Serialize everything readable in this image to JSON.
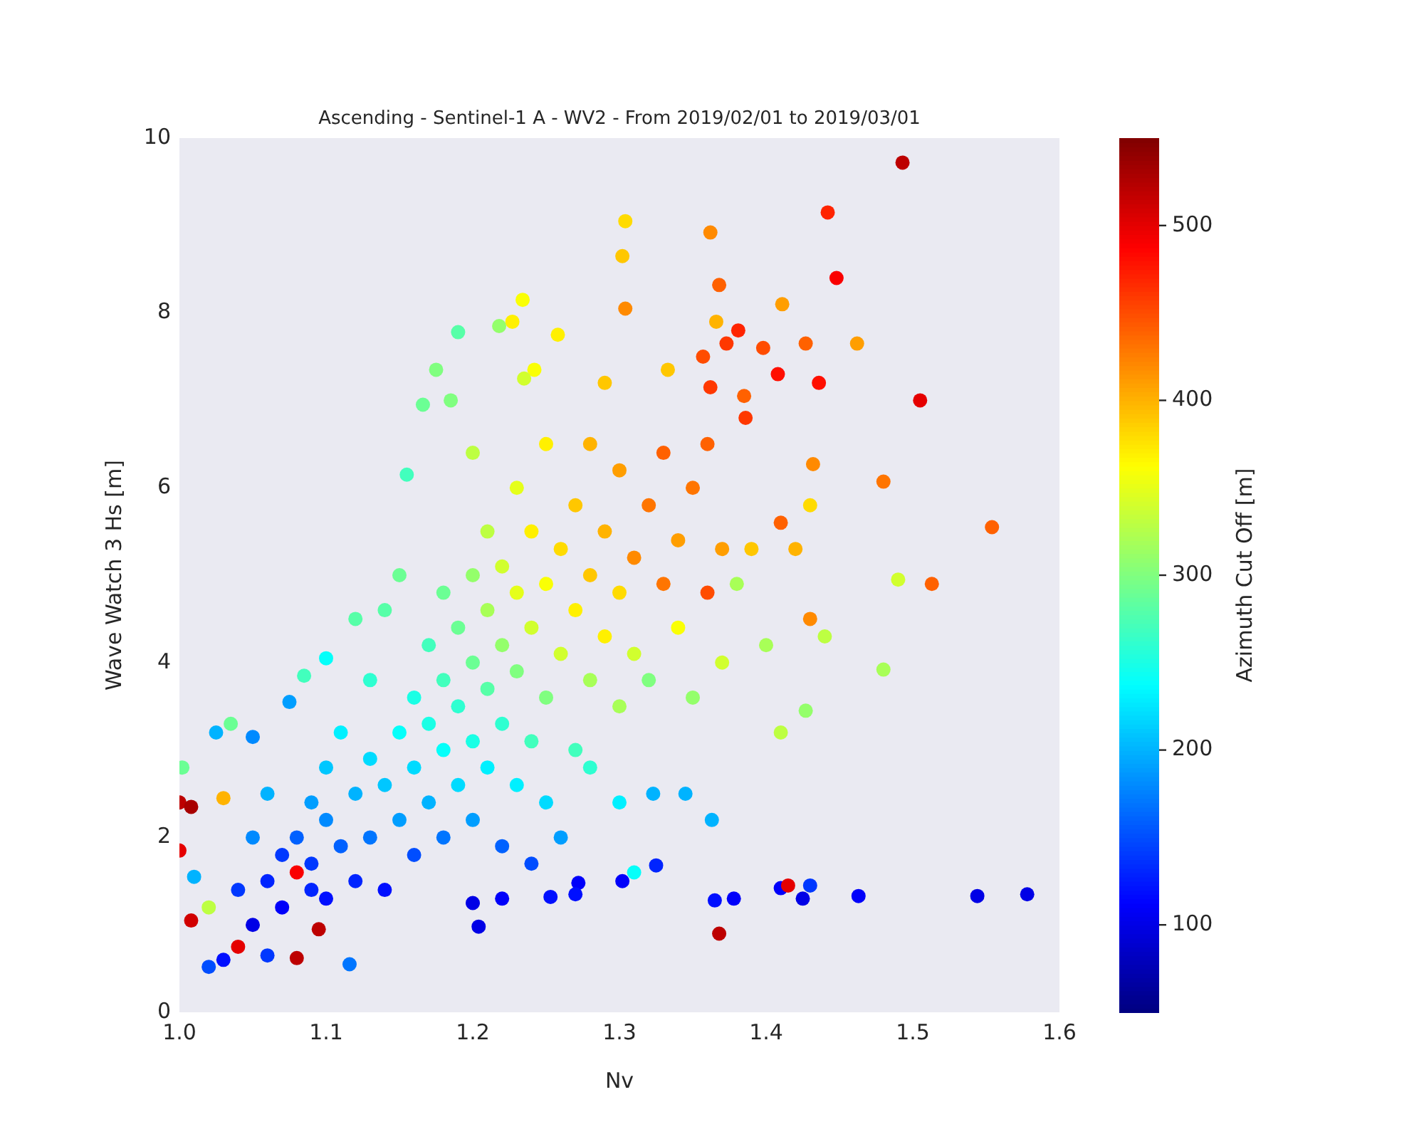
{
  "chart_data": {
    "type": "scatter",
    "title": "Ascending - Sentinel-1 A - WV2 - From 2019/02/01 to 2019/03/01",
    "xlabel": "Nv",
    "ylabel": "Wave Watch 3 Hs [m]",
    "clabel": "Azimuth Cut Off [m]",
    "xlim": [
      1.0,
      1.6
    ],
    "xticks": [
      {
        "value": 1.0,
        "label": "1.0"
      },
      1.1,
      1.2,
      1.3,
      1.4,
      1.5,
      1.6
    ],
    "ylim": [
      0,
      10
    ],
    "yticks": [
      0,
      2,
      4,
      6,
      8,
      10
    ],
    "clim": [
      50,
      550
    ],
    "cticks": [
      100,
      200,
      300,
      400,
      500
    ],
    "grid": false,
    "legend": false,
    "marker": "circle",
    "series": [
      {
        "x": [
          1.493,
          1.442,
          1.448,
          1.362,
          1.368,
          1.304,
          1.302,
          1.304,
          1.234,
          1.227,
          1.411,
          1.462,
          1.427,
          1.398,
          1.373,
          1.381,
          1.357,
          1.362,
          1.436,
          1.505,
          1.408,
          1.554,
          1.513,
          1.49,
          1.48,
          1.432,
          1.48,
          1.427,
          1.41,
          1.385,
          1.386,
          1.366,
          1.333,
          1.29,
          1.258,
          1.242,
          1.235,
          1.218,
          1.19,
          1.175,
          1.166,
          1.155,
          1.185,
          1.2,
          1.365,
          1.378,
          1.41,
          1.415,
          1.425,
          1.43,
          1.463,
          1.544,
          1.578,
          1.368,
          1.325,
          1.323,
          1.345,
          1.363,
          1.31,
          1.302,
          1.272,
          1.27,
          1.253,
          1.22,
          1.2,
          1.204,
          1.116,
          1.02,
          1.03,
          1.04,
          1.06,
          1.08,
          1.05,
          1.07,
          1.09,
          1.0,
          1.0,
          1.008,
          1.002,
          1.008,
          1.01,
          1.02,
          1.025,
          1.035,
          1.05,
          1.075,
          1.085,
          1.1,
          1.08,
          1.095,
          1.03,
          1.05,
          1.06,
          1.04,
          1.06,
          1.07,
          1.08,
          1.09,
          1.1,
          1.1,
          1.11,
          1.12,
          1.12,
          1.13,
          1.13,
          1.14,
          1.14,
          1.15,
          1.15,
          1.16,
          1.16,
          1.16,
          1.17,
          1.17,
          1.17,
          1.18,
          1.18,
          1.18,
          1.18,
          1.19,
          1.19,
          1.19,
          1.2,
          1.2,
          1.2,
          1.2,
          1.21,
          1.21,
          1.21,
          1.21,
          1.22,
          1.22,
          1.22,
          1.22,
          1.23,
          1.23,
          1.23,
          1.23,
          1.24,
          1.24,
          1.24,
          1.25,
          1.25,
          1.25,
          1.25,
          1.26,
          1.26,
          1.27,
          1.27,
          1.27,
          1.28,
          1.28,
          1.28,
          1.29,
          1.29,
          1.3,
          1.3,
          1.3,
          1.31,
          1.31,
          1.32,
          1.32,
          1.33,
          1.33,
          1.34,
          1.34,
          1.35,
          1.35,
          1.36,
          1.36,
          1.37,
          1.37,
          1.38,
          1.39,
          1.4,
          1.41,
          1.42,
          1.43,
          1.44,
          1.43,
          1.3,
          1.28,
          1.26,
          1.24,
          1.14,
          1.15,
          1.13,
          1.12,
          1.11,
          1.1,
          1.09
        ],
        "values": [
          9.72,
          9.15,
          8.4,
          8.92,
          8.32,
          9.05,
          8.65,
          8.05,
          8.15,
          7.9,
          8.1,
          7.65,
          7.65,
          7.6,
          7.65,
          7.8,
          7.5,
          7.15,
          7.2,
          7.0,
          7.3,
          5.55,
          4.9,
          4.95,
          6.07,
          6.27,
          3.92,
          3.45,
          3.2,
          7.05,
          6.8,
          7.9,
          7.35,
          7.2,
          7.75,
          7.35,
          7.25,
          7.85,
          7.78,
          7.35,
          6.95,
          6.15,
          7.0,
          6.4,
          1.28,
          1.3,
          1.42,
          1.45,
          1.3,
          1.45,
          1.33,
          1.33,
          1.35,
          0.9,
          1.68,
          2.5,
          2.5,
          2.2,
          1.6,
          1.5,
          1.48,
          1.35,
          1.32,
          1.3,
          1.25,
          0.98,
          0.55,
          0.52,
          0.6,
          0.75,
          0.65,
          0.62,
          1.0,
          1.2,
          1.4,
          1.85,
          2.4,
          2.35,
          2.8,
          1.05,
          1.55,
          1.2,
          3.2,
          3.3,
          3.15,
          3.55,
          3.85,
          4.05,
          1.6,
          0.95,
          2.45,
          2.0,
          2.5,
          1.4,
          1.5,
          1.8,
          2.0,
          1.7,
          1.3,
          2.2,
          1.9,
          1.5,
          2.5,
          2.0,
          2.9,
          1.4,
          2.6,
          2.2,
          3.2,
          1.8,
          2.8,
          3.6,
          2.4,
          3.3,
          4.2,
          2.0,
          3.0,
          3.8,
          4.8,
          2.6,
          3.5,
          4.4,
          2.2,
          3.1,
          4.0,
          5.0,
          2.8,
          3.7,
          4.6,
          5.5,
          1.9,
          3.3,
          4.2,
          5.1,
          2.6,
          3.9,
          4.8,
          6.0,
          3.1,
          4.4,
          5.5,
          2.4,
          3.6,
          4.9,
          6.5,
          4.1,
          5.3,
          3.0,
          4.6,
          5.8,
          3.8,
          5.0,
          6.5,
          4.3,
          5.5,
          3.5,
          4.8,
          6.2,
          5.2,
          4.1,
          5.8,
          3.8,
          4.9,
          6.4,
          5.4,
          4.4,
          6.0,
          3.6,
          4.8,
          6.5,
          5.3,
          4.0,
          4.9,
          5.3,
          4.2,
          5.6,
          5.3,
          5.8,
          4.3,
          4.5,
          2.4,
          2.8,
          2.0,
          1.7,
          4.6,
          5.0,
          3.8,
          4.5,
          3.2,
          2.8,
          2.4
        ],
        "cvalues": [
          520,
          470,
          490,
          420,
          440,
          380,
          390,
          420,
          360,
          370,
          410,
          410,
          440,
          450,
          460,
          470,
          450,
          460,
          480,
          500,
          480,
          440,
          440,
          340,
          430,
          420,
          320,
          310,
          330,
          440,
          460,
          400,
          390,
          390,
          370,
          360,
          340,
          310,
          280,
          300,
          290,
          270,
          300,
          330,
          120,
          110,
          110,
          500,
          100,
          140,
          110,
          100,
          100,
          520,
          130,
          200,
          200,
          200,
          240,
          110,
          110,
          120,
          120,
          110,
          100,
          100,
          170,
          150,
          120,
          500,
          140,
          520,
          100,
          110,
          130,
          500,
          520,
          530,
          290,
          510,
          200,
          330,
          200,
          290,
          180,
          190,
          270,
          240,
          490,
          520,
          400,
          180,
          200,
          140,
          130,
          140,
          160,
          140,
          120,
          180,
          160,
          130,
          200,
          170,
          220,
          120,
          210,
          190,
          240,
          150,
          220,
          250,
          200,
          250,
          270,
          170,
          240,
          270,
          290,
          220,
          260,
          290,
          190,
          250,
          290,
          310,
          230,
          280,
          320,
          330,
          160,
          260,
          310,
          340,
          230,
          300,
          350,
          350,
          270,
          340,
          370,
          220,
          300,
          360,
          370,
          340,
          380,
          270,
          370,
          390,
          320,
          390,
          400,
          370,
          400,
          320,
          380,
          410,
          420,
          340,
          430,
          300,
          430,
          440,
          410,
          360,
          430,
          310,
          450,
          440,
          410,
          340,
          320,
          390,
          320,
          440,
          400,
          380,
          330,
          420,
          230,
          260,
          190,
          150,
          280,
          290,
          260,
          280,
          230,
          210,
          190
        ]
      }
    ]
  }
}
